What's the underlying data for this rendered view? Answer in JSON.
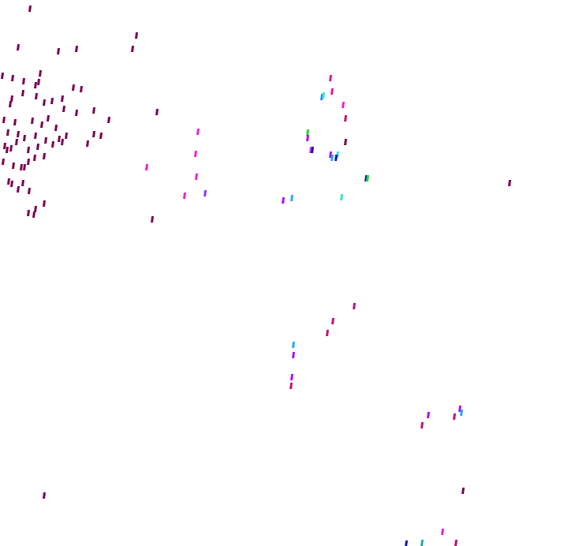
{
  "background": "#ffffff",
  "palette": {
    "dark_magenta": "#7a0050",
    "pink": "#e0189a",
    "magenta": "#ee22cc",
    "crimson": "#c0107a",
    "violet": "#aa11ee",
    "purple": "#9933ee",
    "blue": "#3377ff",
    "navy": "#1111cc",
    "cyan": "#22aaff",
    "aqua": "#22eecc",
    "green": "#22dd22",
    "teal": "#22aaaa"
  }
}
